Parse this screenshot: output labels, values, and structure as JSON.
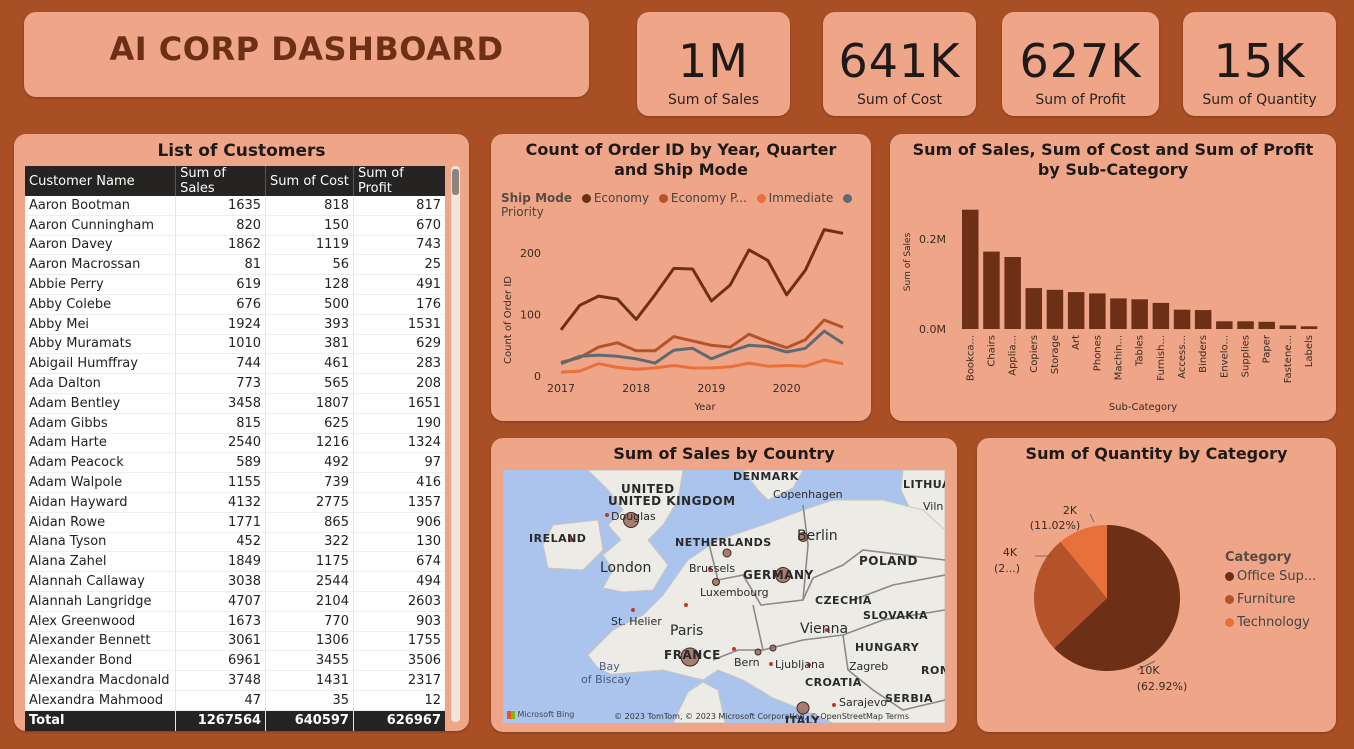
{
  "header": {
    "title": "AI CORP DASHBOARD"
  },
  "kpis": [
    {
      "value": "1M",
      "label": "Sum of Sales"
    },
    {
      "value": "641K",
      "label": "Sum of Cost"
    },
    {
      "value": "627K",
      "label": "Sum of Profit"
    },
    {
      "value": "15K",
      "label": "Sum of Quantity"
    }
  ],
  "customers": {
    "title": "List of Customers",
    "columns": [
      "Customer Name",
      "Sum of Sales",
      "Sum of Cost",
      "Sum of Profit"
    ],
    "rows": [
      [
        "Aaron Bootman",
        "1635",
        "818",
        "817"
      ],
      [
        "Aaron Cunningham",
        "820",
        "150",
        "670"
      ],
      [
        "Aaron Davey",
        "1862",
        "1119",
        "743"
      ],
      [
        "Aaron Macrossan",
        "81",
        "56",
        "25"
      ],
      [
        "Abbie Perry",
        "619",
        "128",
        "491"
      ],
      [
        "Abby Colebe",
        "676",
        "500",
        "176"
      ],
      [
        "Abby Mei",
        "1924",
        "393",
        "1531"
      ],
      [
        "Abby Muramats",
        "1010",
        "381",
        "629"
      ],
      [
        "Abigail Humffray",
        "744",
        "461",
        "283"
      ],
      [
        "Ada Dalton",
        "773",
        "565",
        "208"
      ],
      [
        "Adam Bentley",
        "3458",
        "1807",
        "1651"
      ],
      [
        "Adam Gibbs",
        "815",
        "625",
        "190"
      ],
      [
        "Adam Harte",
        "2540",
        "1216",
        "1324"
      ],
      [
        "Adam Peacock",
        "589",
        "492",
        "97"
      ],
      [
        "Adam Walpole",
        "1155",
        "739",
        "416"
      ],
      [
        "Aidan Hayward",
        "4132",
        "2775",
        "1357"
      ],
      [
        "Aidan Rowe",
        "1771",
        "865",
        "906"
      ],
      [
        "Alana Tyson",
        "452",
        "322",
        "130"
      ],
      [
        "Alana Zahel",
        "1849",
        "1175",
        "674"
      ],
      [
        "Alannah Callaway",
        "3038",
        "2544",
        "494"
      ],
      [
        "Alannah Langridge",
        "4707",
        "2104",
        "2603"
      ],
      [
        "Alex Greenwood",
        "1673",
        "770",
        "903"
      ],
      [
        "Alexander Bennett",
        "3061",
        "1306",
        "1755"
      ],
      [
        "Alexander Bond",
        "6961",
        "3455",
        "3506"
      ],
      [
        "Alexandra Macdonald",
        "3748",
        "1431",
        "2317"
      ],
      [
        "Alexandra Mahmood",
        "47",
        "35",
        "12"
      ]
    ],
    "total": [
      "Total",
      "1267564",
      "640597",
      "626967"
    ]
  },
  "order_chart": {
    "title": "Count of Order ID by Year, Quarter and Ship Mode",
    "legend_title": "Ship Mode",
    "legend": [
      "Economy",
      "Economy P...",
      "Immediate",
      "Priority"
    ],
    "xlabel": "Year",
    "ylabel": "Count of Order ID",
    "xticks": [
      "2017",
      "2018",
      "2019",
      "2020"
    ],
    "yticks": [
      "0",
      "100",
      "200"
    ]
  },
  "subcat_chart": {
    "title": "Sum of Sales, Sum of Cost and Sum of Profit by Sub-Category",
    "xlabel": "Sub-Category",
    "ylabel": "Sum of Sales",
    "yticks": [
      "0.0M",
      "0.2M"
    ]
  },
  "country_map": {
    "title": "Sum of Sales by Country",
    "labels": {
      "uk": "UNITED KINGDOM",
      "ireland": "IRELAND",
      "netherlands": "NETHERLANDS",
      "germany": "GERMANY",
      "poland": "POLAND",
      "czechia": "CZECHIA",
      "slovakia": "SLOVAKIA",
      "hungary": "HUNGARY",
      "france": "FRANCE",
      "croatia": "CROATIA",
      "serbia": "SERBIA",
      "denmark": "DENMARK",
      "lithuania": "LITHUA",
      "romania": "ROM",
      "italy": "ITALY",
      "london": "London",
      "paris": "Paris",
      "berlin": "Berlin",
      "vienna": "Vienna",
      "brussels": "Brussels",
      "luxembourg": "Luxembourg",
      "copenhagen": "Copenhagen",
      "douglas": "Douglas",
      "st_helier": "St. Helier",
      "bern": "Bern",
      "ljubljana": "Ljubljana",
      "zagreb": "Zagreb",
      "sarajevo": "Sarajevo",
      "vilnius": "Viln",
      "bay": "Bay",
      "of_biscay": "of Biscay"
    },
    "attribution": "© 2023 TomTom, © 2023 Microsoft Corporation, © OpenStreetMap  Terms",
    "brand": "Microsoft Bing"
  },
  "qty_chart": {
    "title": "Sum of Quantity by Category",
    "legend_title": "Category",
    "slices": [
      {
        "label": "Office Sup...",
        "display": "10K",
        "pct": "(62.92%)"
      },
      {
        "label": "Furniture",
        "display": "4K",
        "pct": "(2...)"
      },
      {
        "label": "Technology",
        "display": "2K",
        "pct": "(11.02%)"
      }
    ]
  },
  "chart_data": [
    {
      "type": "line",
      "title": "Count of Order ID by Year, Quarter and Ship Mode",
      "xlabel": "Year",
      "ylabel": "Count of Order ID",
      "x": [
        "2017 Q1",
        "2017 Q2",
        "2017 Q3",
        "2017 Q4",
        "2018 Q1",
        "2018 Q2",
        "2018 Q3",
        "2018 Q4",
        "2019 Q1",
        "2019 Q2",
        "2019 Q3",
        "2019 Q4",
        "2020 Q1",
        "2020 Q2",
        "2020 Q3",
        "2020 Q4"
      ],
      "ylim": [
        0,
        250
      ],
      "series": [
        {
          "name": "Economy",
          "color": "#6E2F17",
          "values": [
            75,
            115,
            130,
            125,
            92,
            132,
            175,
            174,
            122,
            148,
            205,
            188,
            132,
            172,
            238,
            232
          ]
        },
        {
          "name": "Economy P...",
          "color": "#B4532A",
          "values": [
            22,
            30,
            47,
            54,
            41,
            41,
            64,
            57,
            50,
            47,
            68,
            56,
            46,
            59,
            91,
            79
          ]
        },
        {
          "name": "Immediate",
          "color": "#E8703A",
          "values": [
            6,
            8,
            20,
            14,
            11,
            13,
            17,
            13,
            13,
            15,
            21,
            16,
            17,
            16,
            26,
            20
          ]
        },
        {
          "name": "Priority",
          "color": "#5E6A71",
          "values": [
            20,
            32,
            34,
            32,
            28,
            21,
            42,
            45,
            28,
            40,
            50,
            48,
            39,
            45,
            73,
            53
          ]
        }
      ],
      "grid": false,
      "legend": "top"
    },
    {
      "type": "bar",
      "title": "Sum of Sales, Sum of Cost and Sum of Profit by Sub-Category",
      "xlabel": "Sub-Category",
      "ylabel": "Sum of Sales",
      "categories": [
        "Bookca...",
        "Chairs",
        "Applia...",
        "Copiers",
        "Storage",
        "Art",
        "Phones",
        "Machin...",
        "Tables",
        "Furnish...",
        "Access...",
        "Binders",
        "Envelo...",
        "Supplies",
        "Paper",
        "Fastene...",
        "Labels"
      ],
      "values": [
        0.265,
        0.172,
        0.16,
        0.091,
        0.087,
        0.082,
        0.079,
        0.068,
        0.066,
        0.058,
        0.043,
        0.042,
        0.017,
        0.017,
        0.016,
        0.008,
        0.006
      ],
      "ylim": [
        0,
        0.3
      ],
      "color": "#6E2F17"
    },
    {
      "type": "pie",
      "title": "Sum of Quantity by Category",
      "categories": [
        "Office Sup...",
        "Furniture",
        "Technology"
      ],
      "values": [
        62.92,
        26.06,
        11.02
      ],
      "colors": [
        "#6E2F17",
        "#B4532A",
        "#E8703A"
      ],
      "legend": "right"
    }
  ]
}
